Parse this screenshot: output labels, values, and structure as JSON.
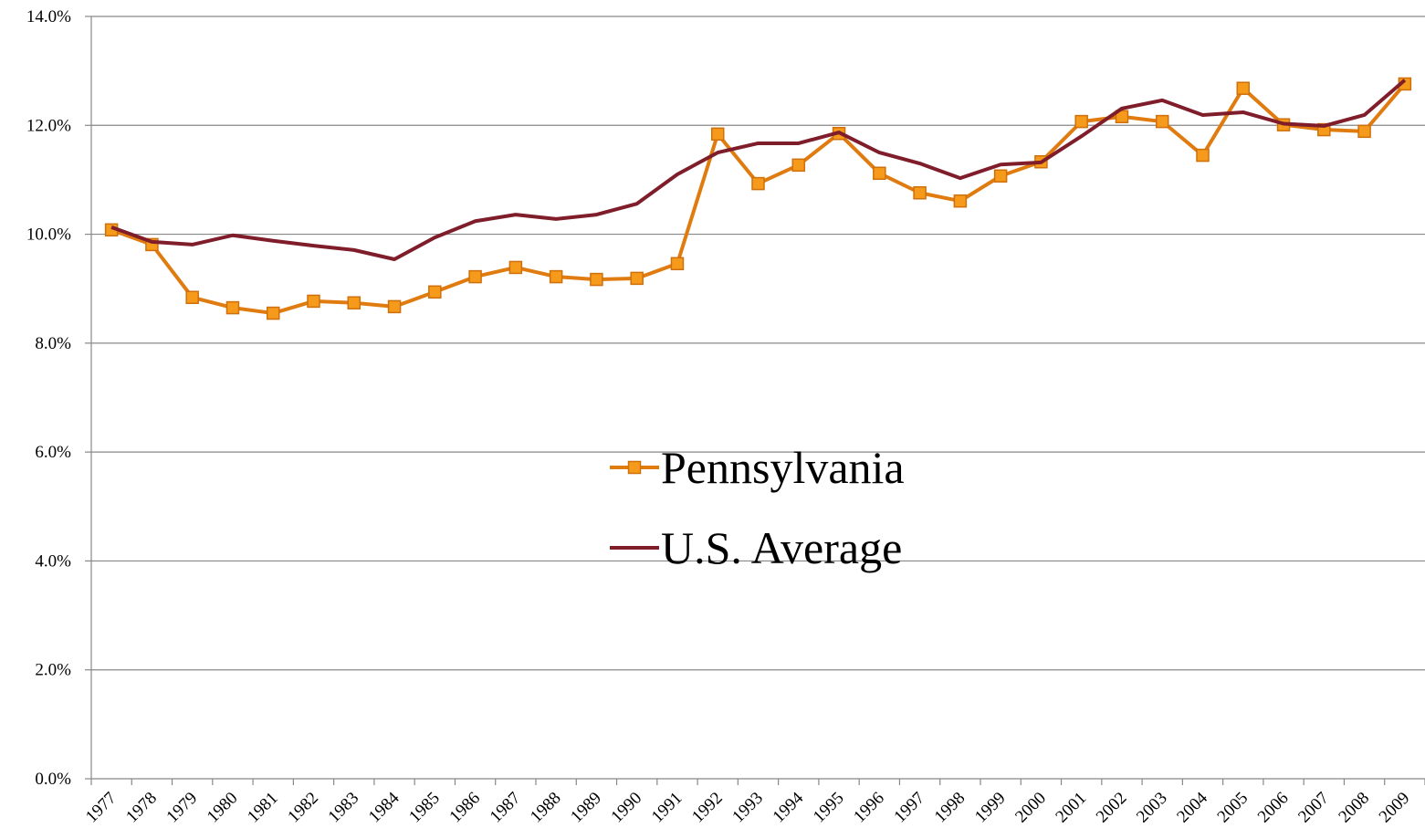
{
  "chart_data": {
    "type": "line",
    "categories": [
      "1977",
      "1978",
      "1979",
      "1980",
      "1981",
      "1982",
      "1983",
      "1984",
      "1985",
      "1986",
      "1987",
      "1988",
      "1989",
      "1990",
      "1991",
      "1992",
      "1993",
      "1994",
      "1995",
      "1996",
      "1997",
      "1998",
      "1999",
      "2000",
      "2001",
      "2002",
      "2003",
      "2004",
      "2005",
      "2006",
      "2007",
      "2008",
      "2009"
    ],
    "series": [
      {
        "name": "Pennsylvania",
        "color": "#e07b10",
        "marker": "square",
        "values": [
          10.08,
          9.81,
          8.84,
          8.65,
          8.55,
          8.77,
          8.74,
          8.67,
          8.94,
          9.22,
          9.39,
          9.22,
          9.17,
          9.19,
          9.46,
          11.84,
          10.93,
          11.27,
          11.85,
          11.12,
          10.76,
          10.61,
          11.07,
          11.33,
          12.07,
          12.16,
          12.07,
          11.45,
          12.68,
          12.01,
          11.92,
          11.89,
          12.76
        ]
      },
      {
        "name": "U.S. Average",
        "color": "#7f1d2b",
        "values": [
          10.13,
          9.86,
          9.81,
          9.98,
          9.88,
          9.79,
          9.71,
          9.54,
          9.94,
          10.24,
          10.36,
          10.28,
          10.36,
          10.56,
          11.1,
          11.5,
          11.67,
          11.67,
          11.87,
          11.5,
          11.3,
          11.03,
          11.28,
          11.32,
          11.8,
          12.31,
          12.46,
          12.19,
          12.24,
          12.03,
          11.99,
          12.19,
          12.83
        ]
      }
    ],
    "ylim": [
      0,
      14
    ],
    "yticks": [
      {
        "value": 0,
        "label": "0.0%"
      },
      {
        "value": 2,
        "label": "2.0%"
      },
      {
        "value": 4,
        "label": "4.0%"
      },
      {
        "value": 6,
        "label": "6.0%"
      },
      {
        "value": 8,
        "label": "8.0%"
      },
      {
        "value": 10,
        "label": "10.0%"
      },
      {
        "value": 12,
        "label": "12.0%"
      },
      {
        "value": 14,
        "label": "14.0%"
      }
    ],
    "grid": true,
    "legend": "center"
  }
}
